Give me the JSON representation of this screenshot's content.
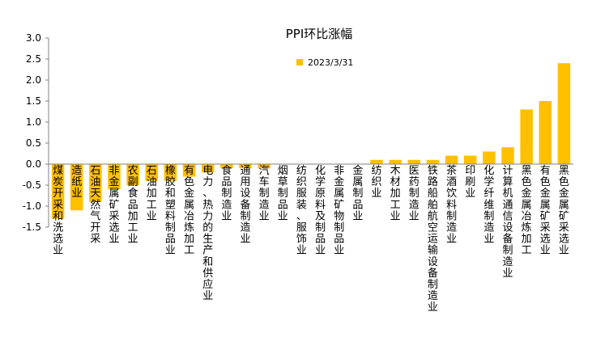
{
  "chart_data": {
    "type": "bar",
    "title": "PPI环比涨幅",
    "legend": {
      "position": "top-center",
      "label": "2023/3/31"
    },
    "ylim": [
      -1.5,
      3.0
    ],
    "yticks": [
      "3.0",
      "2.5",
      "2.0",
      "1.5",
      "1.0",
      "0.5",
      "0.0",
      "-0.5",
      "-1.0",
      "-1.5"
    ],
    "grid": false,
    "colors": {
      "bar": "#FFC000",
      "axis": "#808080",
      "text": "#000000"
    },
    "categories": [
      "煤炭开采和洗选业",
      "造纸业",
      "石油天然气开采",
      "非金属矿采选业",
      "农副食品加工业",
      "石油加工业",
      "橡胶和塑料制品业",
      "有色金属冶炼加工",
      "电力、热力的生产和供应业",
      "食品制造业",
      "通用设备制造业",
      "汽车制造业",
      "烟草制品业",
      "纺织服装、服饰业",
      "化学原料及制品业",
      "非金属矿物制品业",
      "金属制品业",
      "纺织业",
      "木材加工业",
      "医药制造业",
      "铁路船舶航空运输设备制造业",
      "茶酒饮料制造业",
      "印刷业",
      "化学纤维制造业",
      "计算机通信设备制造业",
      "黑色金属冶炼加工",
      "有色金属矿采选业",
      "黑色金属矿采选业"
    ],
    "values": [
      -1.3,
      -1.1,
      -0.9,
      -0.6,
      -0.5,
      -0.4,
      -0.4,
      -0.3,
      -0.2,
      -0.1,
      -0.1,
      -0.1,
      0.0,
      0.0,
      0.0,
      0.0,
      0.0,
      0.1,
      0.1,
      0.1,
      0.1,
      0.2,
      0.2,
      0.3,
      0.4,
      1.3,
      1.5,
      2.4
    ]
  }
}
